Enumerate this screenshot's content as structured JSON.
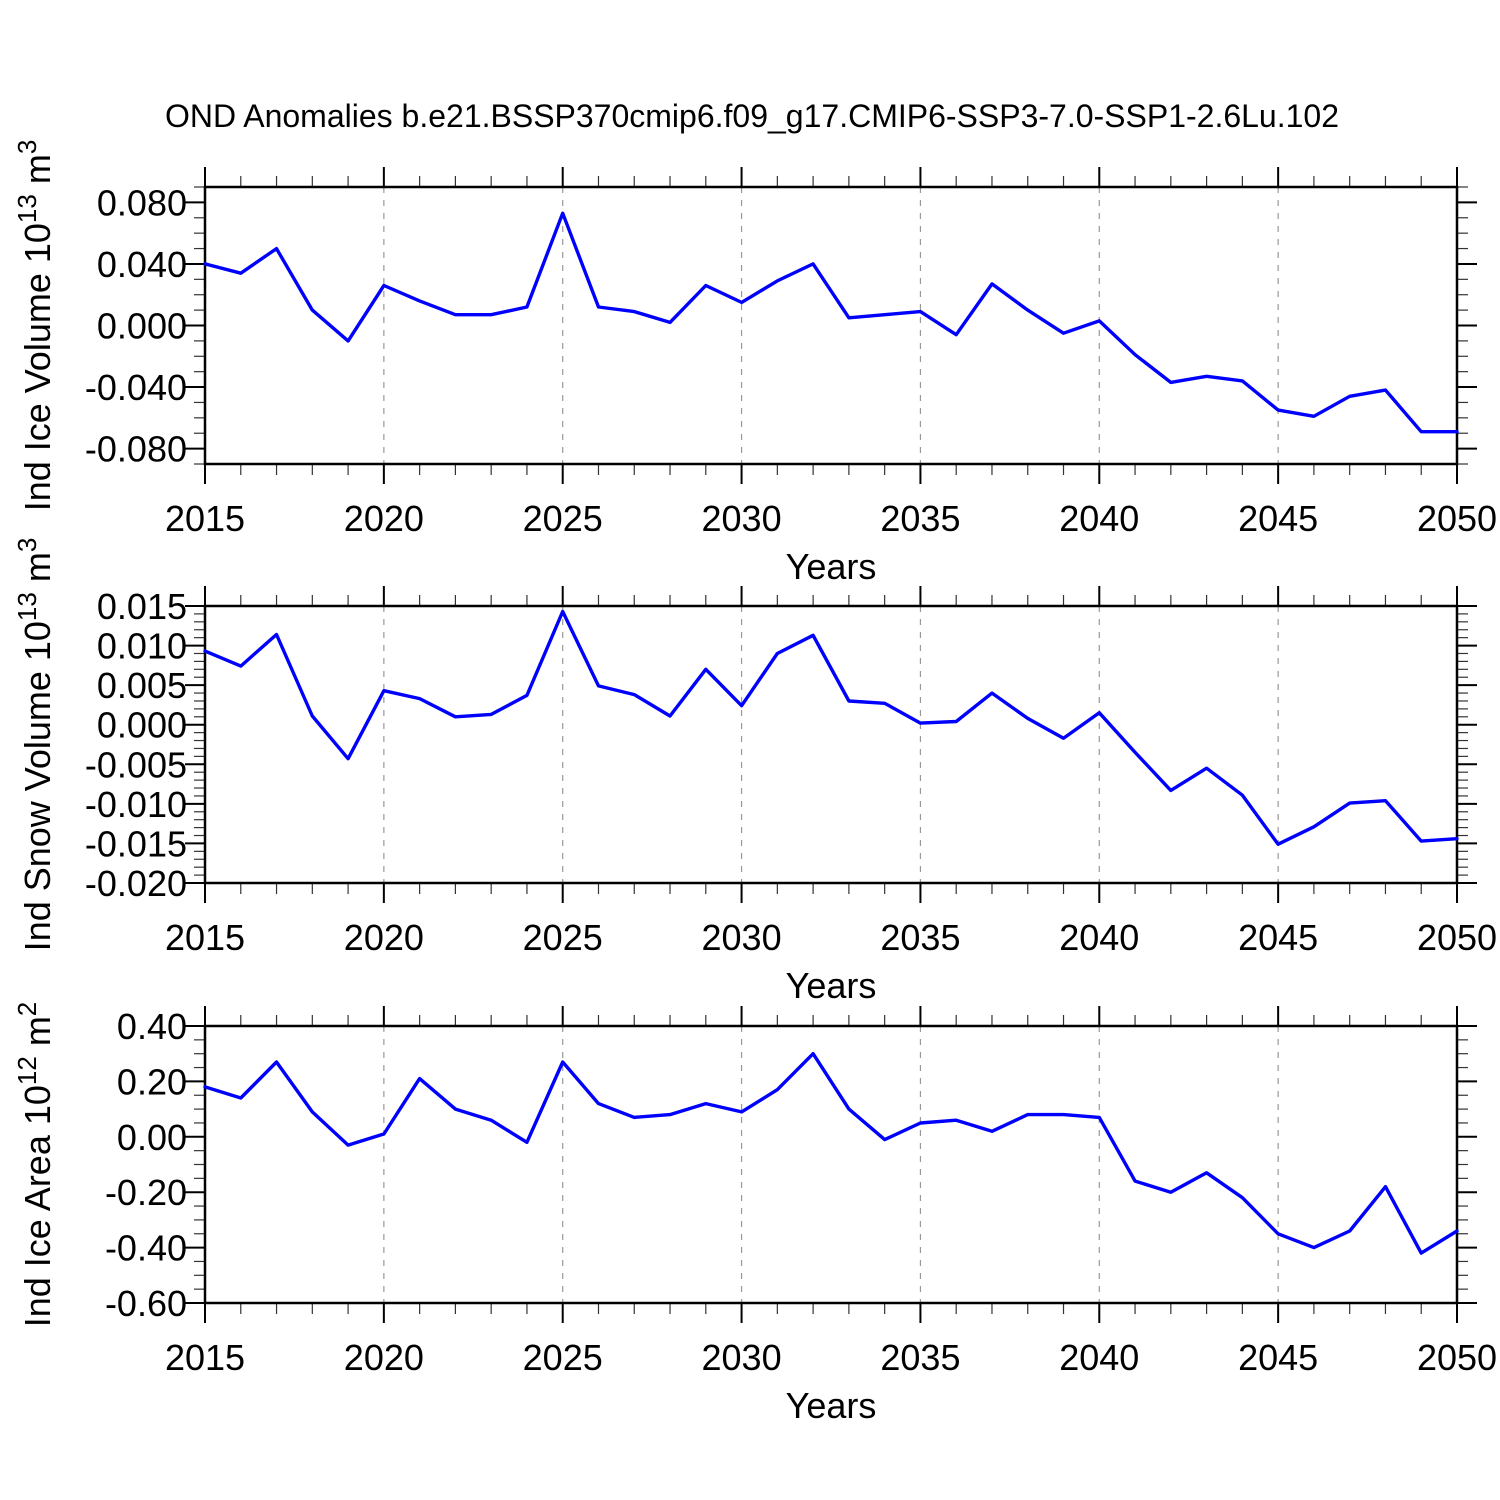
{
  "title": "OND Anomalies b.e21.BSSP370cmip6.f09_g17.CMIP6-SSP3-7.0-SSP1-2.6Lu.102",
  "colors": {
    "line": "#0000ff",
    "axis": "#000000",
    "minor_tick": "#333333",
    "grid": "#999999",
    "background": "#ffffff",
    "text": "#000000"
  },
  "x_axis": {
    "label": "Years",
    "min": 2015,
    "max": 2050,
    "major_tick_interval": 5,
    "minor_tick_interval": 1,
    "tick_labels": [
      "2015",
      "2020",
      "2025",
      "2030",
      "2035",
      "2040",
      "2045",
      "2050"
    ],
    "tick_values": [
      2015,
      2020,
      2025,
      2030,
      2035,
      2040,
      2045,
      2050
    ],
    "gridline_years": [
      2020,
      2025,
      2030,
      2035,
      2040,
      2045
    ]
  },
  "years": [
    2015,
    2016,
    2017,
    2018,
    2019,
    2020,
    2021,
    2022,
    2023,
    2024,
    2025,
    2026,
    2027,
    2028,
    2029,
    2030,
    2031,
    2032,
    2033,
    2034,
    2035,
    2036,
    2037,
    2038,
    2039,
    2040,
    2041,
    2042,
    2043,
    2044,
    2045,
    2046,
    2047,
    2048,
    2049,
    2050
  ],
  "chart_data": [
    {
      "type": "line",
      "name": "ice-volume",
      "ylabel": "Ind Ice Volume 10^13 m^3",
      "ylabel_parts": [
        {
          "text": "Ind Ice Volume 10"
        },
        {
          "text": "13",
          "sup": true
        },
        {
          "text": " m"
        },
        {
          "text": "3",
          "sup": true
        }
      ],
      "xlabel": "Years",
      "ylim": [
        -0.09,
        0.09
      ],
      "ytick_values": [
        0.08,
        0.04,
        0.0,
        -0.04,
        -0.08
      ],
      "ytick_labels": [
        "0.080",
        "0.040",
        "0.000",
        "-0.040",
        "-0.080"
      ],
      "yminor_interval": 0.01,
      "grid": "vertical-dashed",
      "legend": "none",
      "values": [
        0.04,
        0.034,
        0.05,
        0.01,
        -0.01,
        0.026,
        0.016,
        0.007,
        0.007,
        0.012,
        0.073,
        0.012,
        0.009,
        0.002,
        0.026,
        0.015,
        0.029,
        0.04,
        0.005,
        0.007,
        0.009,
        -0.006,
        0.027,
        0.01,
        -0.005,
        0.003,
        -0.019,
        -0.037,
        -0.033,
        -0.036,
        -0.055,
        -0.059,
        -0.046,
        -0.042,
        -0.069,
        -0.069
      ]
    },
    {
      "type": "line",
      "name": "snow-volume",
      "ylabel": "Ind Snow Volume 10^13 m^3",
      "ylabel_parts": [
        {
          "text": "Ind Snow Volume 10"
        },
        {
          "text": "13",
          "sup": true
        },
        {
          "text": " m"
        },
        {
          "text": "3",
          "sup": true
        }
      ],
      "xlabel": "Years",
      "ylim": [
        -0.02,
        0.015
      ],
      "ytick_values": [
        0.015,
        0.01,
        0.005,
        0.0,
        -0.005,
        -0.01,
        -0.015,
        -0.02
      ],
      "ytick_labels": [
        "0.015",
        "0.010",
        "0.005",
        "0.000",
        "-0.005",
        "-0.010",
        "-0.015",
        "-0.020"
      ],
      "yminor_interval": 0.001,
      "grid": "vertical-dashed",
      "legend": "none",
      "values": [
        0.0093,
        0.0074,
        0.0114,
        0.0011,
        -0.0043,
        0.0043,
        0.0033,
        0.001,
        0.0013,
        0.0037,
        0.0143,
        0.0049,
        0.0038,
        0.0011,
        0.007,
        0.0024,
        0.009,
        0.0113,
        0.003,
        0.0027,
        0.0002,
        0.0004,
        0.004,
        0.0008,
        -0.0017,
        0.0015,
        -0.0035,
        -0.0083,
        -0.0055,
        -0.0089,
        -0.0151,
        -0.0129,
        -0.0099,
        -0.0096,
        -0.0147,
        -0.0144
      ]
    },
    {
      "type": "line",
      "name": "ice-area",
      "ylabel": "Ind Ice Area 10^12 m^2",
      "ylabel_parts": [
        {
          "text": "Ind Ice Area 10"
        },
        {
          "text": "12",
          "sup": true
        },
        {
          "text": " m"
        },
        {
          "text": "2",
          "sup": true
        }
      ],
      "xlabel": "Years",
      "ylim": [
        -0.6,
        0.4
      ],
      "ytick_values": [
        0.4,
        0.2,
        0.0,
        -0.2,
        -0.4,
        -0.6
      ],
      "ytick_labels": [
        "0.40",
        "0.20",
        "0.00",
        "-0.20",
        "-0.40",
        "-0.60"
      ],
      "yminor_interval": 0.05,
      "grid": "vertical-dashed",
      "legend": "none",
      "values": [
        0.18,
        0.14,
        0.27,
        0.09,
        -0.03,
        0.01,
        0.21,
        0.1,
        0.06,
        -0.02,
        0.27,
        0.12,
        0.07,
        0.08,
        0.12,
        0.09,
        0.17,
        0.3,
        0.1,
        -0.01,
        0.05,
        0.06,
        0.02,
        0.08,
        0.08,
        0.07,
        -0.16,
        -0.2,
        -0.13,
        -0.22,
        -0.35,
        -0.4,
        -0.34,
        -0.18,
        -0.42,
        -0.34
      ]
    }
  ]
}
